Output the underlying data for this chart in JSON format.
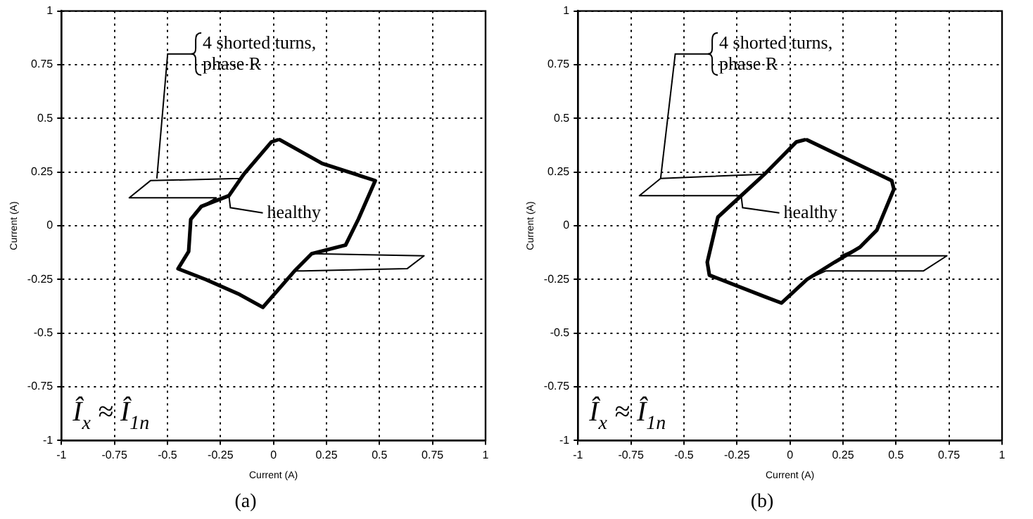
{
  "chart_data": [
    {
      "type": "line",
      "title": "(a)",
      "xlabel": "Current (A)",
      "ylabel": "Current (A)",
      "xlim": [
        -1,
        1
      ],
      "ylim": [
        -1,
        1
      ],
      "xticks": [
        -1,
        -0.75,
        -0.5,
        -0.25,
        0,
        0.25,
        0.5,
        0.75,
        1
      ],
      "yticks": [
        -1,
        -0.75,
        -0.5,
        -0.25,
        0,
        0.25,
        0.5,
        0.75,
        1
      ],
      "grid": true,
      "legend": false,
      "marker": "none",
      "line_style": "solid",
      "series": [
        {
          "color": "#000000",
          "x": [
            0.03,
            0.23,
            0.48,
            0.4,
            0.34,
            0.18,
            0.71,
            0.63,
            0.14,
            0.1,
            -0.05,
            -0.16,
            -0.32,
            -0.45,
            -0.4,
            -0.39,
            -0.34,
            -0.27,
            -0.68,
            -0.58,
            -0.16,
            -0.14,
            -0.01,
            0.02
          ],
          "values": [
            0.4,
            0.29,
            0.21,
            0.03,
            -0.09,
            -0.13,
            -0.14,
            -0.2,
            -0.21,
            -0.21,
            -0.38,
            -0.32,
            -0.25,
            -0.2,
            -0.12,
            0.03,
            0.09,
            0.13,
            0.13,
            0.21,
            0.22,
            0.24,
            0.39,
            0.4
          ]
        },
        {
          "color": "#000000",
          "x": [
            0.03,
            0.23,
            0.48,
            0.4,
            0.34,
            0.18,
            0.1,
            -0.05,
            -0.16,
            -0.32,
            -0.45,
            -0.4,
            -0.39,
            -0.34,
            -0.21,
            -0.14,
            -0.01,
            0.02
          ],
          "values": [
            0.4,
            0.29,
            0.21,
            0.03,
            -0.09,
            -0.13,
            -0.21,
            -0.38,
            -0.32,
            -0.25,
            -0.2,
            -0.12,
            0.03,
            0.09,
            0.14,
            0.24,
            0.39,
            0.4
          ]
        }
      ],
      "annotations": [
        {
          "text": "4 shorted turns, phase R",
          "x": -0.55,
          "y": 0.22
        },
        {
          "text": "healthy",
          "x": -0.21,
          "y": 0.14
        },
        "Î$_{x}$ ≈ Î$_{1n}$"
      ]
    },
    {
      "type": "line",
      "title": "(b)",
      "xlabel": "Current (A)",
      "ylabel": "Current (A)",
      "xlim": [
        -1,
        1
      ],
      "ylim": [
        -1,
        1
      ],
      "xticks": [
        -1,
        -0.75,
        -0.5,
        -0.25,
        0,
        0.25,
        0.5,
        0.75,
        1
      ],
      "yticks": [
        -1,
        -0.75,
        -0.5,
        -0.25,
        0,
        0.25,
        0.5,
        0.75,
        1
      ],
      "grid": true,
      "legend": false,
      "marker": "none",
      "line_style": "solid",
      "series": [
        {
          "color": "#000000",
          "x": [
            0.08,
            0.48,
            0.49,
            0.41,
            0.33,
            0.24,
            0.74,
            0.63,
            0.17,
            0.08,
            -0.04,
            -0.12,
            -0.38,
            -0.39,
            -0.34,
            -0.23,
            -0.71,
            -0.61,
            -0.12,
            0.03,
            0.07
          ],
          "values": [
            0.4,
            0.21,
            0.17,
            -0.02,
            -0.1,
            -0.14,
            -0.14,
            -0.21,
            -0.21,
            -0.25,
            -0.36,
            -0.33,
            -0.23,
            -0.17,
            0.04,
            0.14,
            0.14,
            0.22,
            0.24,
            0.39,
            0.4
          ]
        },
        {
          "color": "#000000",
          "x": [
            0.08,
            0.48,
            0.49,
            0.41,
            0.33,
            0.21,
            0.08,
            -0.04,
            -0.12,
            -0.38,
            -0.39,
            -0.34,
            -0.23,
            -0.12,
            0.03,
            0.07
          ],
          "values": [
            0.4,
            0.21,
            0.17,
            -0.02,
            -0.1,
            -0.17,
            -0.25,
            -0.36,
            -0.33,
            -0.23,
            -0.17,
            0.04,
            0.14,
            0.24,
            0.39,
            0.4
          ]
        }
      ],
      "annotations": [
        {
          "text": "4 shorted turns, phase R",
          "x": -0.61,
          "y": 0.22
        },
        {
          "text": "healthy",
          "x": -0.23,
          "y": 0.14
        },
        "Î$_{x}$ ≈ Î$_{1n}$"
      ]
    }
  ]
}
